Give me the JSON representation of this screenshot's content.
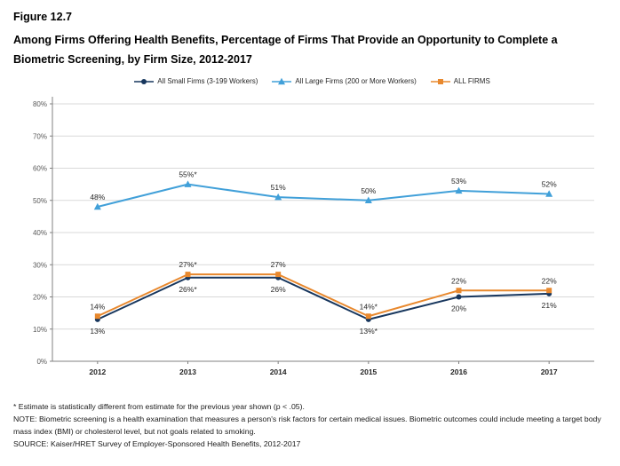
{
  "figure_label": "Figure 12.7",
  "title": "Among Firms Offering Health Benefits, Percentage of Firms That Provide an Opportunity to Complete a Biometric Screening, by Firm Size, 2012-2017",
  "chart_data": {
    "type": "line",
    "x": [
      "2012",
      "2013",
      "2014",
      "2015",
      "2016",
      "2017"
    ],
    "ylim": [
      0,
      80
    ],
    "yticks": [
      "0%",
      "10%",
      "20%",
      "30%",
      "40%",
      "50%",
      "60%",
      "70%",
      "80%"
    ],
    "ytick_step": 10,
    "grid": true,
    "legend_position": "top",
    "series": [
      {
        "name": "All Small Firms (3-199 Workers)",
        "color": "#17365d",
        "marker": "circle",
        "values": [
          13,
          26,
          26,
          13,
          20,
          21
        ],
        "labels": [
          "13%",
          "26%*",
          "26%",
          "13%*",
          "20%",
          "21%"
        ],
        "label_position": "below"
      },
      {
        "name": "All Large Firms (200 or More Workers)",
        "color": "#41a0d9",
        "marker": "triangle",
        "values": [
          48,
          55,
          51,
          50,
          53,
          52
        ],
        "labels": [
          "48%",
          "55%*",
          "51%",
          "50%",
          "53%",
          "52%"
        ],
        "label_position": "above"
      },
      {
        "name": "ALL FIRMS",
        "color": "#e8882d",
        "marker": "square",
        "values": [
          14,
          27,
          27,
          14,
          22,
          22
        ],
        "labels": [
          "14%",
          "27%*",
          "27%",
          "14%*",
          "22%",
          "22%"
        ],
        "label_position": "above"
      }
    ]
  },
  "footnotes": [
    "* Estimate is statistically different from estimate for the previous year shown (p < .05).",
    "NOTE: Biometric screening is a health examination that measures a person's risk factors for certain medical issues. Biometric outcomes could include meeting a target body mass index (BMI) or cholesterol level, but not goals related to smoking.",
    "SOURCE: Kaiser/HRET Survey of Employer-Sponsored Health Benefits, 2012-2017"
  ]
}
